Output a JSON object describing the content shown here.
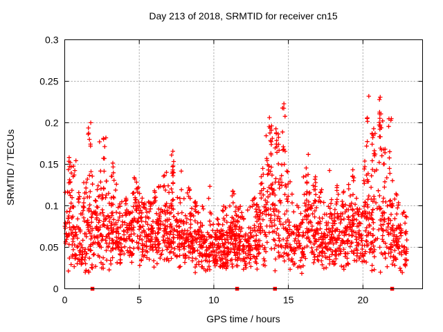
{
  "colors": {
    "points": "#ff0000",
    "baseline_markers": "#ff0000",
    "grid": "#b0b0b0",
    "axis": "#000000",
    "background": "#ffffff"
  },
  "chart_data": {
    "type": "scatter",
    "title": "Day 213 of 2018, SRMTID for receiver cn15",
    "xlabel": "GPS time / hours",
    "ylabel": "SRMTID / TECUs",
    "xlim": [
      0,
      24
    ],
    "ylim": [
      0,
      0.3
    ],
    "grid": true,
    "legend": false,
    "marker": "plus",
    "xticks": {
      "values": [
        0,
        5,
        10,
        15,
        20
      ],
      "labels": [
        "0",
        "5",
        "10",
        "15",
        "20"
      ]
    },
    "yticks": {
      "values": [
        0,
        0.05,
        0.1,
        0.15,
        0.2,
        0.25,
        0.3
      ],
      "labels": [
        "0",
        "0.05",
        "0.1",
        "0.15",
        "0.2",
        "0.25",
        "0.3"
      ]
    },
    "series": [
      {
        "name": "srmtid-points",
        "marker": "plus",
        "color": "#ff0000",
        "bin_hours": 0.5,
        "start_hour": 0,
        "end_hour": 23,
        "bin_fields": [
          "count",
          "typical_value",
          "spread_sigma",
          "max_value"
        ],
        "envelope_bins": [
          [
            50,
            0.09,
            0.38,
            0.17
          ],
          [
            48,
            0.07,
            0.42,
            0.155
          ],
          [
            46,
            0.055,
            0.45,
            0.13
          ],
          [
            55,
            0.08,
            0.52,
            0.205
          ],
          [
            50,
            0.075,
            0.48,
            0.19
          ],
          [
            52,
            0.08,
            0.48,
            0.185
          ],
          [
            50,
            0.075,
            0.45,
            0.165
          ],
          [
            45,
            0.06,
            0.36,
            0.105
          ],
          [
            46,
            0.065,
            0.36,
            0.11
          ],
          [
            50,
            0.08,
            0.36,
            0.135
          ],
          [
            50,
            0.07,
            0.36,
            0.12
          ],
          [
            46,
            0.065,
            0.35,
            0.105
          ],
          [
            50,
            0.07,
            0.36,
            0.125
          ],
          [
            50,
            0.075,
            0.4,
            0.15
          ],
          [
            54,
            0.08,
            0.46,
            0.18
          ],
          [
            50,
            0.07,
            0.44,
            0.16
          ],
          [
            50,
            0.065,
            0.4,
            0.125
          ],
          [
            52,
            0.06,
            0.36,
            0.105
          ],
          [
            48,
            0.055,
            0.35,
            0.1
          ],
          [
            48,
            0.055,
            0.36,
            0.13
          ],
          [
            52,
            0.05,
            0.35,
            0.09
          ],
          [
            60,
            0.055,
            0.35,
            0.1
          ],
          [
            62,
            0.06,
            0.35,
            0.12
          ],
          [
            55,
            0.055,
            0.35,
            0.1
          ],
          [
            48,
            0.055,
            0.36,
            0.1
          ],
          [
            44,
            0.06,
            0.4,
            0.12
          ],
          [
            46,
            0.07,
            0.45,
            0.15
          ],
          [
            56,
            0.11,
            0.5,
            0.22
          ],
          [
            55,
            0.1,
            0.48,
            0.2
          ],
          [
            50,
            0.09,
            0.55,
            0.225
          ],
          [
            36,
            0.06,
            0.45,
            0.13
          ],
          [
            40,
            0.055,
            0.4,
            0.105
          ],
          [
            50,
            0.08,
            0.45,
            0.17
          ],
          [
            50,
            0.07,
            0.4,
            0.14
          ],
          [
            48,
            0.065,
            0.4,
            0.12
          ],
          [
            46,
            0.065,
            0.42,
            0.155
          ],
          [
            50,
            0.07,
            0.4,
            0.13
          ],
          [
            50,
            0.065,
            0.4,
            0.12
          ],
          [
            50,
            0.075,
            0.4,
            0.145
          ],
          [
            46,
            0.065,
            0.4,
            0.11
          ],
          [
            56,
            0.1,
            0.55,
            0.25
          ],
          [
            50,
            0.09,
            0.5,
            0.2
          ],
          [
            56,
            0.1,
            0.55,
            0.232
          ],
          [
            50,
            0.09,
            0.5,
            0.21
          ],
          [
            45,
            0.065,
            0.4,
            0.12
          ],
          [
            36,
            0.055,
            0.45,
            0.1
          ]
        ]
      },
      {
        "name": "baseline-markers",
        "marker": "filled-square",
        "color": "#ff0000",
        "y": 0,
        "x": [
          1.86,
          11.56,
          14.1,
          21.96
        ]
      }
    ]
  }
}
